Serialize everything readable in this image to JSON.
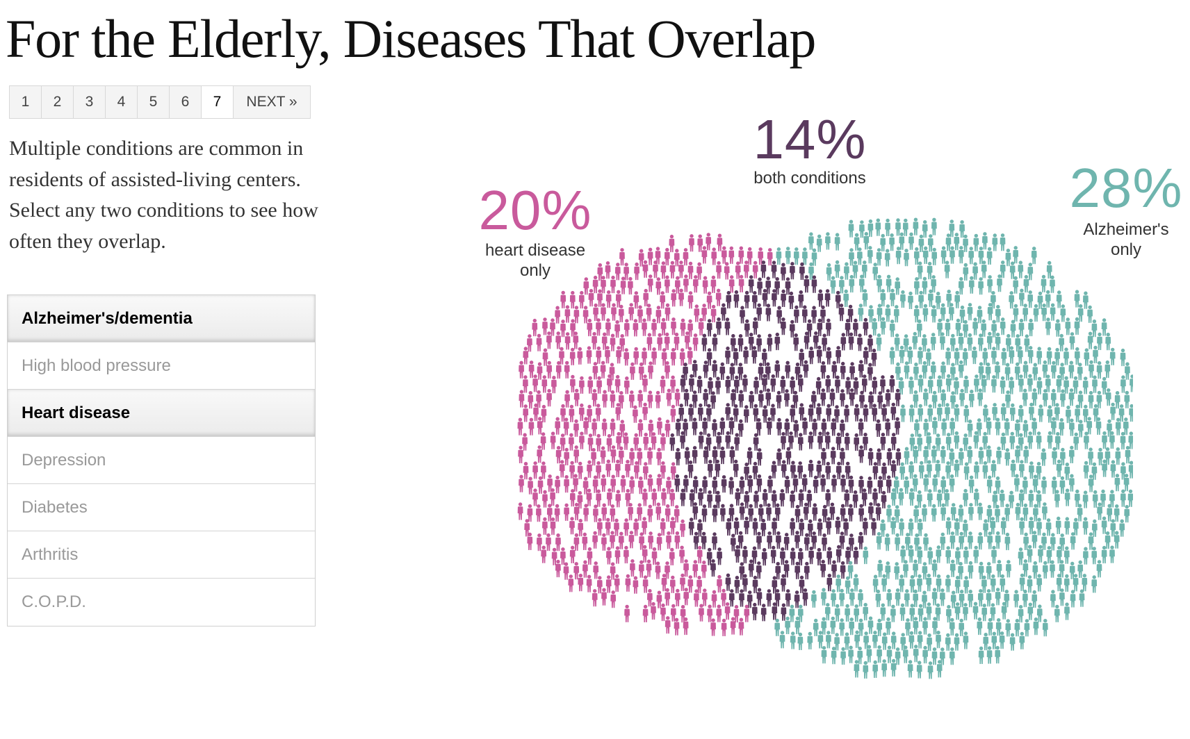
{
  "title": "For the Elderly, Diseases That Overlap",
  "pager": {
    "pages": [
      "1",
      "2",
      "3",
      "4",
      "5",
      "6",
      "7"
    ],
    "active": "7",
    "next_label": "NEXT »"
  },
  "intro": "Multiple conditions are common in residents of assisted-living centers. Select any two conditions to see how often they overlap.",
  "conditions": [
    {
      "label": "Alzheimer's/dementia",
      "selected": true
    },
    {
      "label": "High blood pressure",
      "selected": false
    },
    {
      "label": "Heart disease",
      "selected": true
    },
    {
      "label": "Depression",
      "selected": false
    },
    {
      "label": "Diabetes",
      "selected": false
    },
    {
      "label": "Arthritis",
      "selected": false
    },
    {
      "label": "C.O.P.D."
    }
  ],
  "chart_data": {
    "type": "venn",
    "sets": [
      "Heart disease",
      "Alzheimer's/dementia"
    ],
    "segments": [
      {
        "key": "heart_only",
        "value": 20,
        "pct_label": "20%",
        "description": "heart disease only",
        "color": "#c95a9c"
      },
      {
        "key": "both",
        "value": 14,
        "pct_label": "14%",
        "description": "both conditions",
        "color": "#5a3a5e"
      },
      {
        "key": "alz_only",
        "value": 28,
        "pct_label": "28%",
        "description": "Alzheimer's only",
        "color": "#6fb5ae"
      }
    ],
    "unit": "%"
  }
}
